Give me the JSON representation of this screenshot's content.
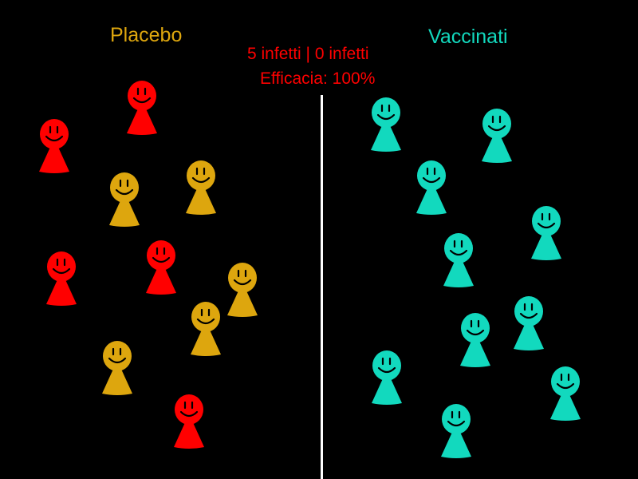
{
  "labels": {
    "placebo": "Placebo",
    "vaccinated": "Vaccinati",
    "counts": "5 infetti | 0 infetti",
    "efficacy": "Efficacia: 100%"
  },
  "colors": {
    "infected": "#FF0000",
    "healthy_placebo": "#DDA60E",
    "vaccinated": "#12D9BE",
    "divider": "#FFFFFF",
    "face": "#000000"
  },
  "groups": {
    "placebo": {
      "total": 10,
      "infected": 5
    },
    "vaccinated": {
      "total": 10,
      "infected": 0
    }
  }
}
